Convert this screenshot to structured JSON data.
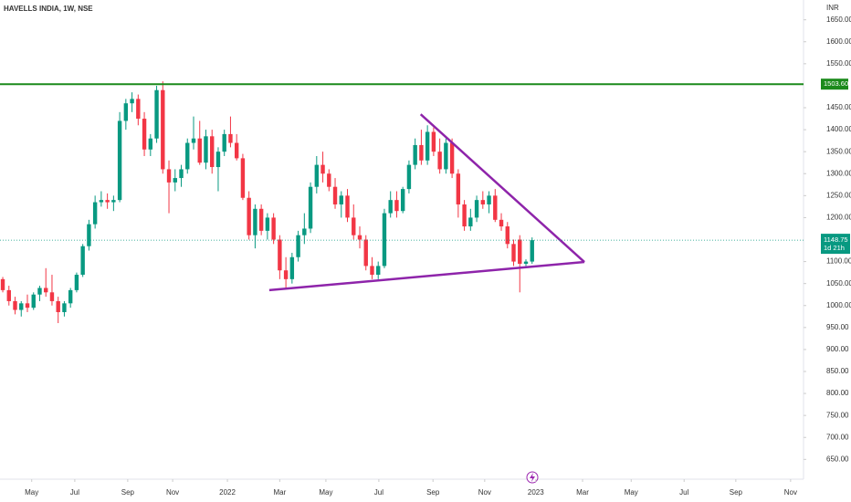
{
  "chart_data": {
    "type": "candlestick",
    "title": "HAVELLS INDIA, 1W, NSE",
    "currency": "INR",
    "x": [
      0,
      1,
      2,
      3,
      4,
      5,
      6,
      7,
      8,
      9,
      10,
      11,
      12,
      13,
      14,
      15,
      16,
      17,
      18,
      19,
      20,
      21,
      22,
      23,
      24,
      25,
      26,
      27,
      28,
      29,
      30,
      31,
      32,
      33,
      34,
      35,
      36,
      37,
      38,
      39,
      40,
      41,
      42,
      43,
      44,
      45,
      46,
      47,
      48,
      49,
      50,
      51,
      52,
      53,
      54,
      55,
      56,
      57,
      58,
      59,
      60,
      61,
      62,
      63,
      64,
      65,
      66,
      67,
      68,
      69,
      70,
      71,
      72,
      73,
      74,
      75,
      76,
      77,
      78,
      79,
      80,
      81,
      82,
      83,
      84,
      85,
      86
    ],
    "open": [
      1060,
      1035,
      1010,
      990,
      1005,
      995,
      1025,
      1040,
      1030,
      1010,
      985,
      1005,
      1035,
      1070,
      1135,
      1185,
      1235,
      1240,
      1235,
      1240,
      1420,
      1460,
      1470,
      1425,
      1355,
      1380,
      1490,
      1310,
      1280,
      1290,
      1310,
      1370,
      1380,
      1325,
      1385,
      1315,
      1350,
      1390,
      1370,
      1335,
      1245,
      1160,
      1220,
      1170,
      1200,
      1150,
      1080,
      1060,
      1110,
      1160,
      1175,
      1270,
      1320,
      1300,
      1270,
      1230,
      1250,
      1200,
      1160,
      1150,
      1090,
      1070,
      1090,
      1210,
      1240,
      1215,
      1265,
      1320,
      1365,
      1330,
      1395,
      1350,
      1310,
      1370,
      1300,
      1230,
      1180,
      1200,
      1240,
      1230,
      1250,
      1195,
      1180,
      1140,
      1150,
      1095,
      1100
    ],
    "high": [
      1065,
      1045,
      1020,
      1010,
      1025,
      1030,
      1045,
      1085,
      1070,
      1020,
      1010,
      1040,
      1075,
      1140,
      1195,
      1250,
      1260,
      1255,
      1250,
      1440,
      1470,
      1485,
      1480,
      1440,
      1390,
      1500,
      1510,
      1330,
      1310,
      1320,
      1380,
      1430,
      1420,
      1400,
      1400,
      1360,
      1400,
      1430,
      1390,
      1345,
      1260,
      1230,
      1230,
      1210,
      1210,
      1160,
      1110,
      1120,
      1170,
      1210,
      1280,
      1340,
      1350,
      1310,
      1290,
      1260,
      1265,
      1230,
      1180,
      1160,
      1110,
      1100,
      1220,
      1260,
      1260,
      1270,
      1330,
      1380,
      1400,
      1410,
      1405,
      1380,
      1380,
      1380,
      1310,
      1240,
      1220,
      1250,
      1260,
      1260,
      1265,
      1210,
      1190,
      1150,
      1160,
      1105,
      1155
    ],
    "low": [
      1030,
      1000,
      980,
      975,
      985,
      990,
      1010,
      1020,
      1000,
      960,
      975,
      995,
      1030,
      1065,
      1125,
      1175,
      1225,
      1220,
      1215,
      1235,
      1400,
      1440,
      1410,
      1340,
      1340,
      1370,
      1300,
      1210,
      1260,
      1270,
      1300,
      1355,
      1320,
      1310,
      1300,
      1260,
      1340,
      1360,
      1330,
      1240,
      1150,
      1130,
      1160,
      1150,
      1140,
      1060,
      1040,
      1050,
      1100,
      1140,
      1165,
      1255,
      1280,
      1260,
      1220,
      1200,
      1190,
      1150,
      1130,
      1080,
      1060,
      1060,
      1085,
      1200,
      1200,
      1210,
      1255,
      1310,
      1320,
      1320,
      1340,
      1300,
      1300,
      1290,
      1200,
      1170,
      1170,
      1190,
      1220,
      1210,
      1190,
      1170,
      1130,
      1090,
      1030,
      1090,
      1095
    ],
    "close": [
      1035,
      1010,
      990,
      1005,
      995,
      1025,
      1040,
      1030,
      1010,
      985,
      1005,
      1035,
      1070,
      1135,
      1185,
      1235,
      1240,
      1235,
      1240,
      1420,
      1460,
      1470,
      1425,
      1355,
      1380,
      1490,
      1310,
      1280,
      1290,
      1310,
      1370,
      1380,
      1325,
      1385,
      1315,
      1350,
      1390,
      1370,
      1335,
      1245,
      1160,
      1220,
      1170,
      1200,
      1150,
      1080,
      1060,
      1110,
      1160,
      1175,
      1270,
      1320,
      1300,
      1270,
      1230,
      1250,
      1200,
      1160,
      1150,
      1090,
      1070,
      1090,
      1210,
      1240,
      1215,
      1265,
      1320,
      1365,
      1330,
      1395,
      1350,
      1310,
      1370,
      1300,
      1230,
      1180,
      1200,
      1240,
      1230,
      1250,
      1195,
      1180,
      1140,
      1100,
      1095,
      1100,
      1148.75
    ],
    "up_color": "#089981",
    "down_color": "#f23645",
    "xlim": [
      -0.45,
      130.1
    ],
    "xticks": [
      {
        "value": 4.7,
        "label": "May"
      },
      {
        "value": 11.7,
        "label": "Jul"
      },
      {
        "value": 20.3,
        "label": "Sep"
      },
      {
        "value": 27.6,
        "label": "Nov"
      },
      {
        "value": 36.5,
        "label": "2022"
      },
      {
        "value": 45,
        "label": "Mar"
      },
      {
        "value": 52.5,
        "label": "May"
      },
      {
        "value": 61.1,
        "label": "Jul"
      },
      {
        "value": 69.9,
        "label": "Sep"
      },
      {
        "value": 78.3,
        "label": "Nov"
      },
      {
        "value": 86.6,
        "label": "2023"
      },
      {
        "value": 94.2,
        "label": "Mar"
      },
      {
        "value": 102.1,
        "label": "May"
      },
      {
        "value": 110.7,
        "label": "Jul"
      },
      {
        "value": 119.1,
        "label": "Sep"
      },
      {
        "value": 128,
        "label": "Nov"
      }
    ],
    "ylim": [
      605,
      1695
    ],
    "yticks": [
      {
        "value": 650,
        "label": "650.00"
      },
      {
        "value": 700,
        "label": "700.00"
      },
      {
        "value": 750,
        "label": "750.00"
      },
      {
        "value": 800,
        "label": "800.00"
      },
      {
        "value": 850,
        "label": "850.00"
      },
      {
        "value": 900,
        "label": "900.00"
      },
      {
        "value": 950,
        "label": "950.00"
      },
      {
        "value": 1000,
        "label": "1000.00"
      },
      {
        "value": 1050,
        "label": "1050.00"
      },
      {
        "value": 1100,
        "label": "1100.00"
      },
      {
        "value": 1200,
        "label": "1200.00"
      },
      {
        "value": 1250,
        "label": "1250.00"
      },
      {
        "value": 1300,
        "label": "1300.00"
      },
      {
        "value": 1350,
        "label": "1350.00"
      },
      {
        "value": 1400,
        "label": "1400.00"
      },
      {
        "value": 1450,
        "label": "1450.00"
      },
      {
        "value": 1550,
        "label": "1550.00"
      },
      {
        "value": 1600,
        "label": "1600.00"
      },
      {
        "value": 1650,
        "label": "1650.00"
      }
    ],
    "hline": {
      "value": 1503.6,
      "label": "1503.60",
      "color": "#1b8a1b"
    },
    "last_price": {
      "value": 1148.75,
      "label": "1148.75",
      "countdown": "1d 21h",
      "color": "#089981"
    },
    "trendlines": [
      {
        "x": [
          43.3,
          94.5
        ],
        "y": [
          1035,
          1099
        ],
        "color": "#8e24aa"
      },
      {
        "x": [
          67.9,
          94.5
        ],
        "y": [
          1435,
          1099
        ],
        "color": "#8e24aa"
      }
    ]
  }
}
